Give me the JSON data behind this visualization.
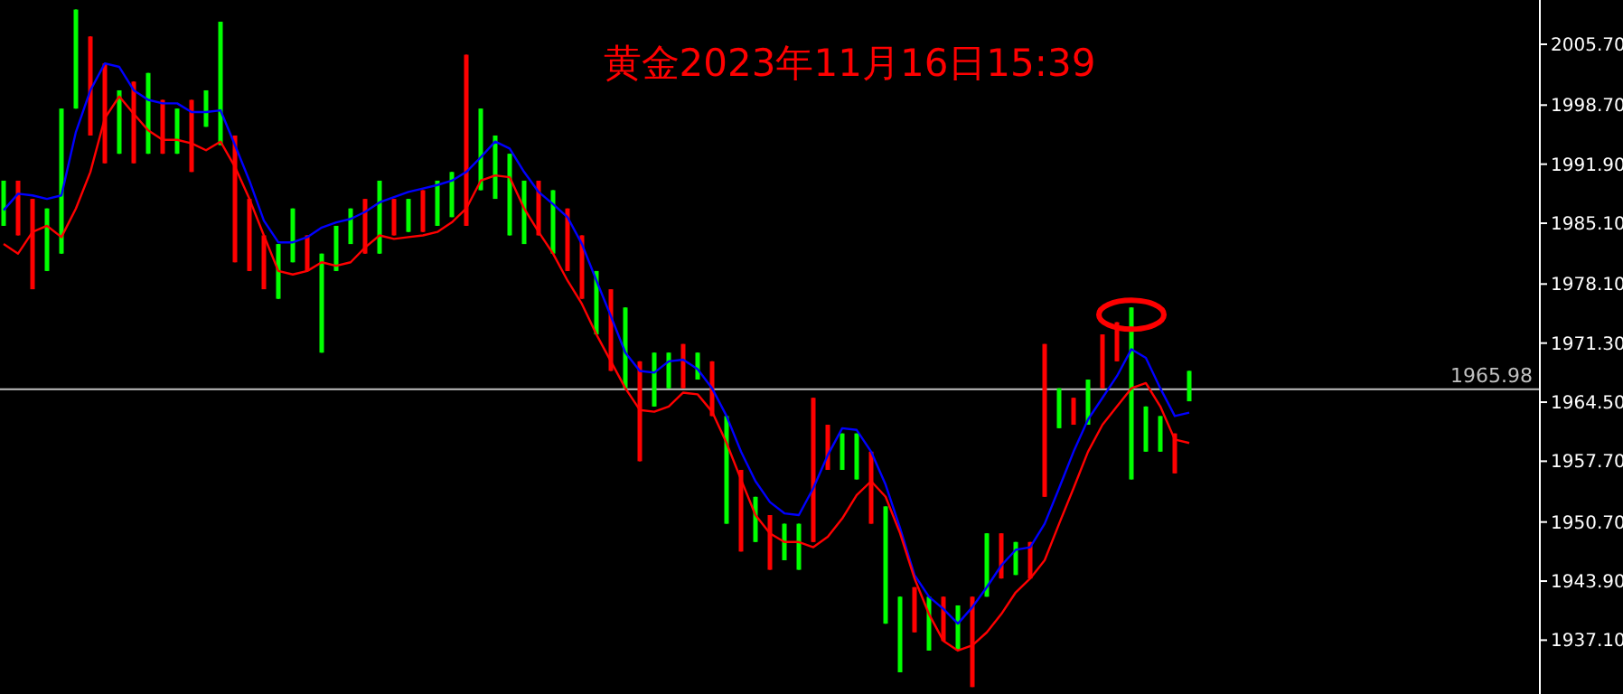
{
  "chart_data": {
    "type": "candlestick",
    "title": "黄金2023年11月16日15:39",
    "categories": [
      null,
      null,
      null,
      null,
      null,
      null,
      null,
      null,
      null,
      null,
      null,
      null,
      null,
      null,
      null,
      null,
      null,
      null,
      null,
      null,
      null,
      null,
      null,
      null,
      null,
      null,
      null,
      null,
      null,
      null,
      null,
      null,
      null,
      null,
      null,
      null,
      null,
      null,
      null,
      null,
      null,
      null,
      null,
      null,
      null,
      null,
      null,
      null,
      null,
      null,
      null,
      null,
      null,
      null,
      null,
      null,
      null,
      null,
      null,
      null,
      null,
      null,
      null,
      null,
      null,
      null,
      null,
      null,
      null,
      null,
      null,
      null,
      null,
      null,
      null,
      null,
      null,
      null,
      null,
      null,
      null,
      null,
      null
    ],
    "ohlc": [
      [
        1984.8,
        1990.0,
        1984.8,
        1990.0
      ],
      [
        1990.0,
        1990.0,
        1983.7,
        1983.7
      ],
      [
        1987.9,
        1987.9,
        1977.5,
        1977.5
      ],
      [
        1979.6,
        1986.8,
        1979.6,
        1986.8
      ],
      [
        1981.6,
        1998.3,
        1981.6,
        1998.3
      ],
      [
        1998.3,
        2009.7,
        1998.3,
        2009.7
      ],
      [
        2006.6,
        2006.6,
        1995.2,
        1995.2
      ],
      [
        2003.5,
        2003.5,
        1992.0,
        1992.0
      ],
      [
        1993.1,
        2000.4,
        1993.1,
        2000.4
      ],
      [
        2001.4,
        2001.4,
        1992.0,
        1992.0
      ],
      [
        1993.1,
        2002.4,
        1993.1,
        2002.4
      ],
      [
        1999.3,
        1999.3,
        1993.1,
        1993.1
      ],
      [
        1993.1,
        1998.3,
        1993.1,
        1998.3
      ],
      [
        1999.3,
        1999.3,
        1991.0,
        1991.0
      ],
      [
        1996.2,
        2000.4,
        1996.2,
        2000.4
      ],
      [
        1994.1,
        2008.3,
        1994.1,
        2008.3
      ],
      [
        1995.2,
        1995.2,
        1980.6,
        1980.6
      ],
      [
        1987.9,
        1987.9,
        1979.6,
        1979.6
      ],
      [
        1983.7,
        1983.7,
        1977.5,
        1977.5
      ],
      [
        1976.4,
        1982.7,
        1976.4,
        1982.7
      ],
      [
        1980.6,
        1986.8,
        1980.6,
        1986.8
      ],
      [
        1983.7,
        1983.7,
        1979.6,
        1979.6
      ],
      [
        1970.2,
        1981.6,
        1970.2,
        1981.6
      ],
      [
        1979.6,
        1984.8,
        1979.6,
        1984.8
      ],
      [
        1982.7,
        1986.8,
        1982.7,
        1986.8
      ],
      [
        1987.9,
        1987.9,
        1981.6,
        1981.6
      ],
      [
        1981.6,
        1990.0,
        1981.6,
        1990.0
      ],
      [
        1987.9,
        1987.9,
        1983.7,
        1983.7
      ],
      [
        1984.1,
        1987.9,
        1984.1,
        1987.9
      ],
      [
        1988.9,
        1988.9,
        1984.1,
        1984.1
      ],
      [
        1984.8,
        1990.0,
        1984.8,
        1990.0
      ],
      [
        1985.8,
        1991.0,
        1985.8,
        1991.0
      ],
      [
        2004.5,
        2004.5,
        1984.8,
        1984.8
      ],
      [
        1988.9,
        1998.3,
        1988.9,
        1998.3
      ],
      [
        1987.9,
        1995.2,
        1987.9,
        1995.2
      ],
      [
        1983.7,
        1993.1,
        1983.7,
        1993.1
      ],
      [
        1982.7,
        1990.0,
        1982.7,
        1990.0
      ],
      [
        1990.0,
        1990.0,
        1983.7,
        1983.7
      ],
      [
        1981.6,
        1988.9,
        1981.6,
        1988.9
      ],
      [
        1986.8,
        1986.8,
        1979.6,
        1979.6
      ],
      [
        1983.7,
        1983.7,
        1976.4,
        1976.4
      ],
      [
        1972.3,
        1979.6,
        1972.3,
        1979.6
      ],
      [
        1977.5,
        1977.5,
        1968.1,
        1968.1
      ],
      [
        1966.1,
        1975.4,
        1966.1,
        1975.4
      ],
      [
        1969.2,
        1969.2,
        1957.7,
        1957.7
      ],
      [
        1964.0,
        1970.2,
        1964.0,
        1970.2
      ],
      [
        1966.1,
        1970.2,
        1966.1,
        1970.2
      ],
      [
        1971.2,
        1971.2,
        1966.1,
        1966.1
      ],
      [
        1967.1,
        1970.2,
        1967.1,
        1970.2
      ],
      [
        1969.2,
        1969.2,
        1962.9,
        1962.9
      ],
      [
        1950.5,
        1962.9,
        1950.5,
        1962.9
      ],
      [
        1956.7,
        1956.7,
        1947.3,
        1947.3
      ],
      [
        1948.4,
        1953.6,
        1948.4,
        1953.6
      ],
      [
        1951.5,
        1951.5,
        1945.2,
        1945.2
      ],
      [
        1946.3,
        1950.5,
        1946.3,
        1950.5
      ],
      [
        1945.2,
        1950.5,
        1945.2,
        1950.5
      ],
      [
        1965.0,
        1965.0,
        1948.4,
        1948.4
      ],
      [
        1961.9,
        1961.9,
        1956.7,
        1956.7
      ],
      [
        1956.7,
        1960.9,
        1956.7,
        1960.9
      ],
      [
        1955.6,
        1960.9,
        1955.6,
        1960.9
      ],
      [
        1958.8,
        1958.8,
        1950.5,
        1950.5
      ],
      [
        1939.0,
        1952.5,
        1939.0,
        1952.5
      ],
      [
        1933.4,
        1942.1,
        1933.4,
        1942.1
      ],
      [
        1943.2,
        1943.2,
        1938.0,
        1938.0
      ],
      [
        1935.9,
        1942.1,
        1935.9,
        1942.1
      ],
      [
        1942.1,
        1942.1,
        1937.0,
        1937.0
      ],
      [
        1935.9,
        1941.1,
        1935.9,
        1941.1
      ],
      [
        1942.1,
        1942.1,
        1931.7,
        1931.7
      ],
      [
        1942.1,
        1949.4,
        1942.1,
        1949.4
      ],
      [
        1949.4,
        1949.4,
        1944.2,
        1944.2
      ],
      [
        1944.6,
        1948.4,
        1944.6,
        1948.4
      ],
      [
        1948.4,
        1948.4,
        1944.2,
        1944.2
      ],
      [
        1971.2,
        1971.2,
        1953.6,
        1953.6
      ],
      [
        1961.5,
        1966.1,
        1961.5,
        1966.1
      ],
      [
        1965.0,
        1965.0,
        1961.9,
        1961.9
      ],
      [
        1961.9,
        1967.1,
        1961.9,
        1967.1
      ],
      [
        1972.3,
        1972.3,
        1966.1,
        1966.1
      ],
      [
        1973.7,
        1973.7,
        1969.2,
        1969.2
      ],
      [
        1955.6,
        1975.4,
        1955.6,
        1975.4
      ],
      [
        1958.8,
        1964.0,
        1958.8,
        1964.0
      ],
      [
        1958.8,
        1962.9,
        1958.8,
        1962.9
      ],
      [
        1960.9,
        1960.9,
        1956.3,
        1956.3
      ],
      [
        1964.6,
        1968.1,
        1964.6,
        1968.1
      ]
    ],
    "series": [
      {
        "type": "line",
        "color": "#0000ff",
        "values": [
          1986.6,
          1988.5,
          1988.3,
          1987.9,
          1988.3,
          1995.6,
          2000.4,
          2003.5,
          2003.1,
          2000.4,
          1999.3,
          1998.9,
          1998.9,
          1997.9,
          1997.9,
          1998.1,
          1994.1,
          1990.0,
          1985.4,
          1982.9,
          1982.9,
          1983.5,
          1984.6,
          1985.2,
          1985.6,
          1986.4,
          1987.5,
          1988.1,
          1988.7,
          1989.1,
          1989.5,
          1990.0,
          1991.0,
          1992.7,
          1994.5,
          1993.7,
          1991.0,
          1988.7,
          1987.3,
          1985.8,
          1982.7,
          1978.5,
          1974.4,
          1970.2,
          1968.1,
          1967.9,
          1969.2,
          1969.4,
          1968.3,
          1966.1,
          1962.9,
          1958.8,
          1955.4,
          1953.0,
          1951.7,
          1951.5,
          1954.6,
          1958.4,
          1961.5,
          1961.3,
          1958.8,
          1955.0,
          1950.0,
          1944.6,
          1942.1,
          1940.7,
          1939.0,
          1940.9,
          1943.2,
          1945.7,
          1947.5,
          1947.8,
          1950.5,
          1954.6,
          1958.8,
          1962.5,
          1965.0,
          1967.5,
          1970.6,
          1969.6,
          1966.1,
          1962.9,
          1963.3
        ]
      },
      {
        "type": "line",
        "color": "#ff0000",
        "values": [
          1982.7,
          1981.6,
          1984.1,
          1984.8,
          1983.5,
          1986.8,
          1991.0,
          1997.2,
          1999.7,
          1997.7,
          1995.8,
          1994.7,
          1994.7,
          1994.3,
          1993.5,
          1994.5,
          1991.6,
          1987.9,
          1983.7,
          1979.6,
          1979.2,
          1979.6,
          1980.6,
          1980.2,
          1980.6,
          1982.3,
          1983.7,
          1983.3,
          1983.5,
          1983.7,
          1984.1,
          1985.2,
          1986.8,
          1990.0,
          1990.6,
          1990.4,
          1986.8,
          1984.1,
          1981.6,
          1978.5,
          1975.8,
          1972.3,
          1969.2,
          1966.1,
          1963.6,
          1963.4,
          1964.0,
          1965.6,
          1965.4,
          1963.4,
          1959.8,
          1955.6,
          1951.5,
          1949.4,
          1948.4,
          1948.4,
          1947.8,
          1949.0,
          1951.1,
          1953.8,
          1955.4,
          1953.6,
          1949.4,
          1944.2,
          1940.1,
          1937.0,
          1935.9,
          1936.5,
          1938.0,
          1940.1,
          1942.6,
          1944.2,
          1946.3,
          1950.5,
          1954.6,
          1958.8,
          1961.9,
          1964.0,
          1966.1,
          1966.7,
          1964.0,
          1960.2,
          1959.8
        ]
      }
    ],
    "ylim": [
      1930.9,
      2010.8
    ],
    "yticks": [
      {
        "value": 2005.7,
        "label": "2005.70"
      },
      {
        "value": 1998.7,
        "label": "1998.70"
      },
      {
        "value": 1991.9,
        "label": "1991.90"
      },
      {
        "value": 1985.1,
        "label": "1985.10"
      },
      {
        "value": 1978.1,
        "label": "1978.10"
      },
      {
        "value": 1971.3,
        "label": "1971.30"
      },
      {
        "value": 1964.5,
        "label": "1964.50"
      },
      {
        "value": 1957.7,
        "label": "1957.70"
      },
      {
        "value": 1950.7,
        "label": "1950.70"
      },
      {
        "value": 1943.9,
        "label": "1943.90"
      },
      {
        "value": 1937.1,
        "label": "1937.10"
      }
    ],
    "ref_lines": [
      {
        "axis": "y",
        "value": 1965.98,
        "label": "1965.98",
        "color": "#c0c0c0"
      }
    ],
    "tick_labels": "y"
  }
}
